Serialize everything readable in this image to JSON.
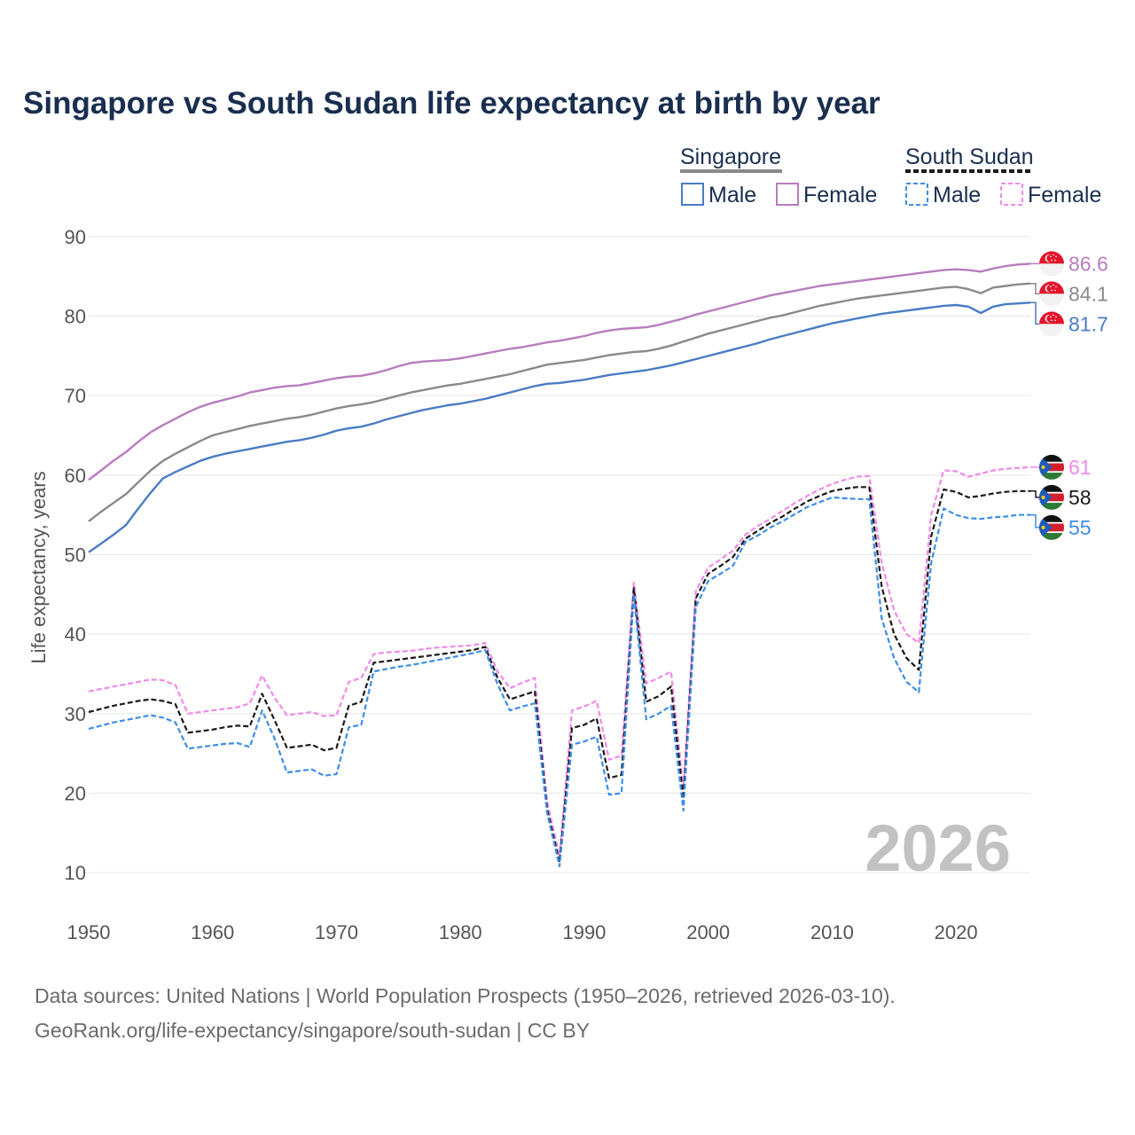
{
  "chart_data": {
    "type": "line",
    "title": "Singapore vs South Sudan life expectancy at birth by year",
    "xlabel": "",
    "ylabel": "Life expectancy, years",
    "xlim": [
      1950,
      2026
    ],
    "ylim": [
      6,
      93
    ],
    "x_ticks": [
      "1950",
      "1960",
      "1970",
      "1980",
      "1990",
      "2000",
      "2010",
      "2020"
    ],
    "y_ticks": [
      "10",
      "20",
      "30",
      "40",
      "50",
      "60",
      "70",
      "80",
      "90"
    ],
    "year_watermark": "2026",
    "legend": {
      "groups": [
        {
          "label": "Singapore",
          "line_color": "#8a8a8a",
          "dashed": false
        },
        {
          "label": "South Sudan",
          "line_color": "#1a1a1a",
          "dashed": true
        }
      ],
      "items": [
        {
          "label": "Male",
          "color": "#4a7cc4",
          "dashed": false
        },
        {
          "label": "Female",
          "color": "#b87cbf",
          "dashed": false
        },
        {
          "label": "Male",
          "color": "#3d8ee8",
          "dashed": true
        },
        {
          "label": "Female",
          "color": "#f08aea",
          "dashed": true
        }
      ]
    },
    "x": [
      1950,
      1951,
      1952,
      1953,
      1954,
      1955,
      1956,
      1957,
      1958,
      1959,
      1960,
      1961,
      1962,
      1963,
      1964,
      1965,
      1966,
      1967,
      1968,
      1969,
      1970,
      1971,
      1972,
      1973,
      1974,
      1975,
      1976,
      1977,
      1978,
      1979,
      1980,
      1981,
      1982,
      1983,
      1984,
      1985,
      1986,
      1987,
      1988,
      1989,
      1990,
      1991,
      1992,
      1993,
      1994,
      1995,
      1996,
      1997,
      1998,
      1999,
      2000,
      2001,
      2002,
      2003,
      2004,
      2005,
      2006,
      2007,
      2008,
      2009,
      2010,
      2011,
      2012,
      2013,
      2014,
      2015,
      2016,
      2017,
      2018,
      2019,
      2020,
      2021,
      2022,
      2023,
      2024,
      2025,
      2026
    ],
    "series": [
      {
        "name": "Singapore Female",
        "country": "Singapore",
        "sex": "Female",
        "color": "#b87cbf",
        "dashed": false,
        "end_label": "86.6",
        "values": [
          59.4,
          60.6,
          61.8,
          62.9,
          64.2,
          65.4,
          66.3,
          67.1,
          67.9,
          68.6,
          69.1,
          69.5,
          69.9,
          70.4,
          70.7,
          71.0,
          71.2,
          71.3,
          71.6,
          71.9,
          72.2,
          72.4,
          72.5,
          72.8,
          73.2,
          73.7,
          74.1,
          74.3,
          74.4,
          74.5,
          74.7,
          75.0,
          75.3,
          75.6,
          75.9,
          76.1,
          76.4,
          76.7,
          76.9,
          77.2,
          77.5,
          77.9,
          78.2,
          78.4,
          78.5,
          78.6,
          78.9,
          79.3,
          79.7,
          80.2,
          80.6,
          81.0,
          81.4,
          81.8,
          82.2,
          82.6,
          82.9,
          83.2,
          83.5,
          83.8,
          84.0,
          84.2,
          84.4,
          84.6,
          84.8,
          85.0,
          85.2,
          85.4,
          85.6,
          85.8,
          85.9,
          85.8,
          85.6,
          86.0,
          86.3,
          86.5,
          86.6
        ]
      },
      {
        "name": "Singapore Total",
        "country": "Singapore",
        "sex": "Total",
        "color": "#8a8a8a",
        "dashed": false,
        "end_label": "84.1",
        "values": [
          54.2,
          55.4,
          56.5,
          57.6,
          59.1,
          60.6,
          61.8,
          62.7,
          63.5,
          64.3,
          65.0,
          65.4,
          65.8,
          66.2,
          66.5,
          66.8,
          67.1,
          67.3,
          67.6,
          68.0,
          68.4,
          68.7,
          68.9,
          69.2,
          69.6,
          70.0,
          70.4,
          70.7,
          71.0,
          71.3,
          71.5,
          71.8,
          72.1,
          72.4,
          72.7,
          73.1,
          73.5,
          73.9,
          74.1,
          74.3,
          74.5,
          74.8,
          75.1,
          75.3,
          75.5,
          75.6,
          75.9,
          76.3,
          76.8,
          77.3,
          77.8,
          78.2,
          78.6,
          79.0,
          79.4,
          79.8,
          80.1,
          80.5,
          80.9,
          81.3,
          81.6,
          81.9,
          82.2,
          82.4,
          82.6,
          82.8,
          83.0,
          83.2,
          83.4,
          83.6,
          83.7,
          83.4,
          82.9,
          83.6,
          83.8,
          84.0,
          84.1
        ]
      },
      {
        "name": "Singapore Male",
        "country": "Singapore",
        "sex": "Male",
        "color": "#4a7cc4",
        "dashed": false,
        "end_label": "81.7",
        "values": [
          50.3,
          51.4,
          52.5,
          53.7,
          55.8,
          57.8,
          59.6,
          60.4,
          61.1,
          61.8,
          62.3,
          62.7,
          63.0,
          63.3,
          63.6,
          63.9,
          64.2,
          64.4,
          64.7,
          65.1,
          65.6,
          65.9,
          66.1,
          66.5,
          67.0,
          67.4,
          67.8,
          68.2,
          68.5,
          68.8,
          69.0,
          69.3,
          69.6,
          70.0,
          70.4,
          70.8,
          71.2,
          71.5,
          71.6,
          71.8,
          72.0,
          72.3,
          72.6,
          72.8,
          73.0,
          73.2,
          73.5,
          73.8,
          74.2,
          74.6,
          75.0,
          75.4,
          75.8,
          76.2,
          76.6,
          77.1,
          77.5,
          77.9,
          78.3,
          78.7,
          79.1,
          79.4,
          79.7,
          80.0,
          80.3,
          80.5,
          80.7,
          80.9,
          81.1,
          81.3,
          81.4,
          81.2,
          80.4,
          81.2,
          81.5,
          81.6,
          81.7
        ]
      },
      {
        "name": "South Sudan Female",
        "country": "South Sudan",
        "sex": "Female",
        "color": "#f08aea",
        "dashed": true,
        "end_label": "61",
        "values": [
          32.8,
          33.1,
          33.4,
          33.7,
          34.0,
          34.3,
          34.2,
          33.6,
          30.0,
          30.2,
          30.4,
          30.6,
          30.8,
          31.3,
          34.8,
          32.0,
          29.8,
          30.0,
          30.2,
          29.7,
          29.8,
          34.0,
          34.5,
          37.5,
          37.7,
          37.8,
          37.9,
          38.1,
          38.3,
          38.4,
          38.5,
          38.6,
          38.9,
          35.3,
          33.2,
          33.9,
          34.5,
          19.0,
          12.0,
          30.4,
          30.9,
          31.6,
          24.2,
          24.7,
          46.5,
          33.8,
          34.5,
          35.3,
          20.5,
          45.4,
          48.4,
          49.4,
          50.5,
          52.5,
          53.6,
          54.5,
          55.5,
          56.5,
          57.4,
          58.2,
          58.9,
          59.4,
          59.8,
          59.9,
          49.0,
          43.0,
          40.0,
          38.9,
          55.0,
          60.6,
          60.5,
          59.8,
          60.2,
          60.6,
          60.8,
          60.9,
          61.0
        ]
      },
      {
        "name": "South Sudan Total",
        "country": "South Sudan",
        "sex": "Total",
        "color": "#1a1a1a",
        "dashed": true,
        "end_label": "58",
        "values": [
          30.2,
          30.6,
          31.0,
          31.3,
          31.6,
          31.8,
          31.6,
          31.2,
          27.6,
          27.8,
          28.0,
          28.3,
          28.5,
          28.4,
          32.5,
          29.2,
          25.7,
          25.9,
          26.1,
          25.4,
          25.7,
          31.0,
          31.5,
          36.4,
          36.6,
          36.8,
          37.0,
          37.2,
          37.4,
          37.6,
          37.8,
          38.0,
          38.4,
          34.5,
          31.8,
          32.3,
          32.8,
          18.0,
          11.3,
          28.2,
          28.6,
          29.4,
          21.9,
          22.3,
          45.8,
          31.5,
          32.2,
          33.4,
          19.3,
          44.5,
          47.6,
          48.6,
          49.7,
          52.0,
          53.0,
          54.0,
          54.8,
          55.8,
          56.7,
          57.4,
          58.0,
          58.3,
          58.5,
          58.5,
          46.0,
          40.0,
          37.0,
          35.5,
          52.3,
          58.2,
          57.9,
          57.2,
          57.4,
          57.7,
          57.9,
          58.0,
          58.0
        ]
      },
      {
        "name": "South Sudan Male",
        "country": "South Sudan",
        "sex": "Male",
        "color": "#3d8ee8",
        "dashed": true,
        "end_label": "55",
        "values": [
          28.1,
          28.5,
          28.9,
          29.2,
          29.5,
          29.8,
          29.5,
          28.9,
          25.6,
          25.8,
          26.0,
          26.2,
          26.3,
          25.8,
          30.4,
          26.9,
          22.6,
          22.8,
          23.0,
          22.2,
          22.4,
          28.3,
          28.6,
          35.3,
          35.6,
          35.9,
          36.1,
          36.4,
          36.7,
          37.0,
          37.3,
          37.6,
          38.0,
          33.7,
          30.4,
          30.9,
          31.3,
          17.5,
          10.8,
          26.1,
          26.5,
          27.1,
          19.8,
          20.0,
          45.0,
          29.3,
          30.0,
          31.0,
          17.8,
          43.4,
          46.7,
          47.6,
          48.6,
          51.6,
          52.4,
          53.4,
          54.2,
          55.1,
          56.0,
          56.6,
          57.2,
          57.1,
          57.0,
          57.0,
          42.0,
          37.0,
          34.0,
          32.7,
          49.0,
          55.8,
          55.0,
          54.6,
          54.5,
          54.7,
          54.8,
          55.0,
          55.0
        ]
      }
    ]
  },
  "source": {
    "line1": "Data sources: United Nations | World Population Prospects (1950–2026, retrieved 2026-03-10).",
    "line2": "GeoRank.org/life-expectancy/singapore/south-sudan | CC BY"
  },
  "flags": {
    "singapore": {
      "icon": "singapore-flag-icon",
      "red": "#e5122a",
      "white": "#f2f2f2"
    },
    "south_sudan": {
      "icon": "south-sudan-flag-icon",
      "black": "#111111",
      "red": "#d21f2b",
      "green": "#2d7a34",
      "blue": "#1e5bb8",
      "star": "#f5d21c"
    }
  }
}
